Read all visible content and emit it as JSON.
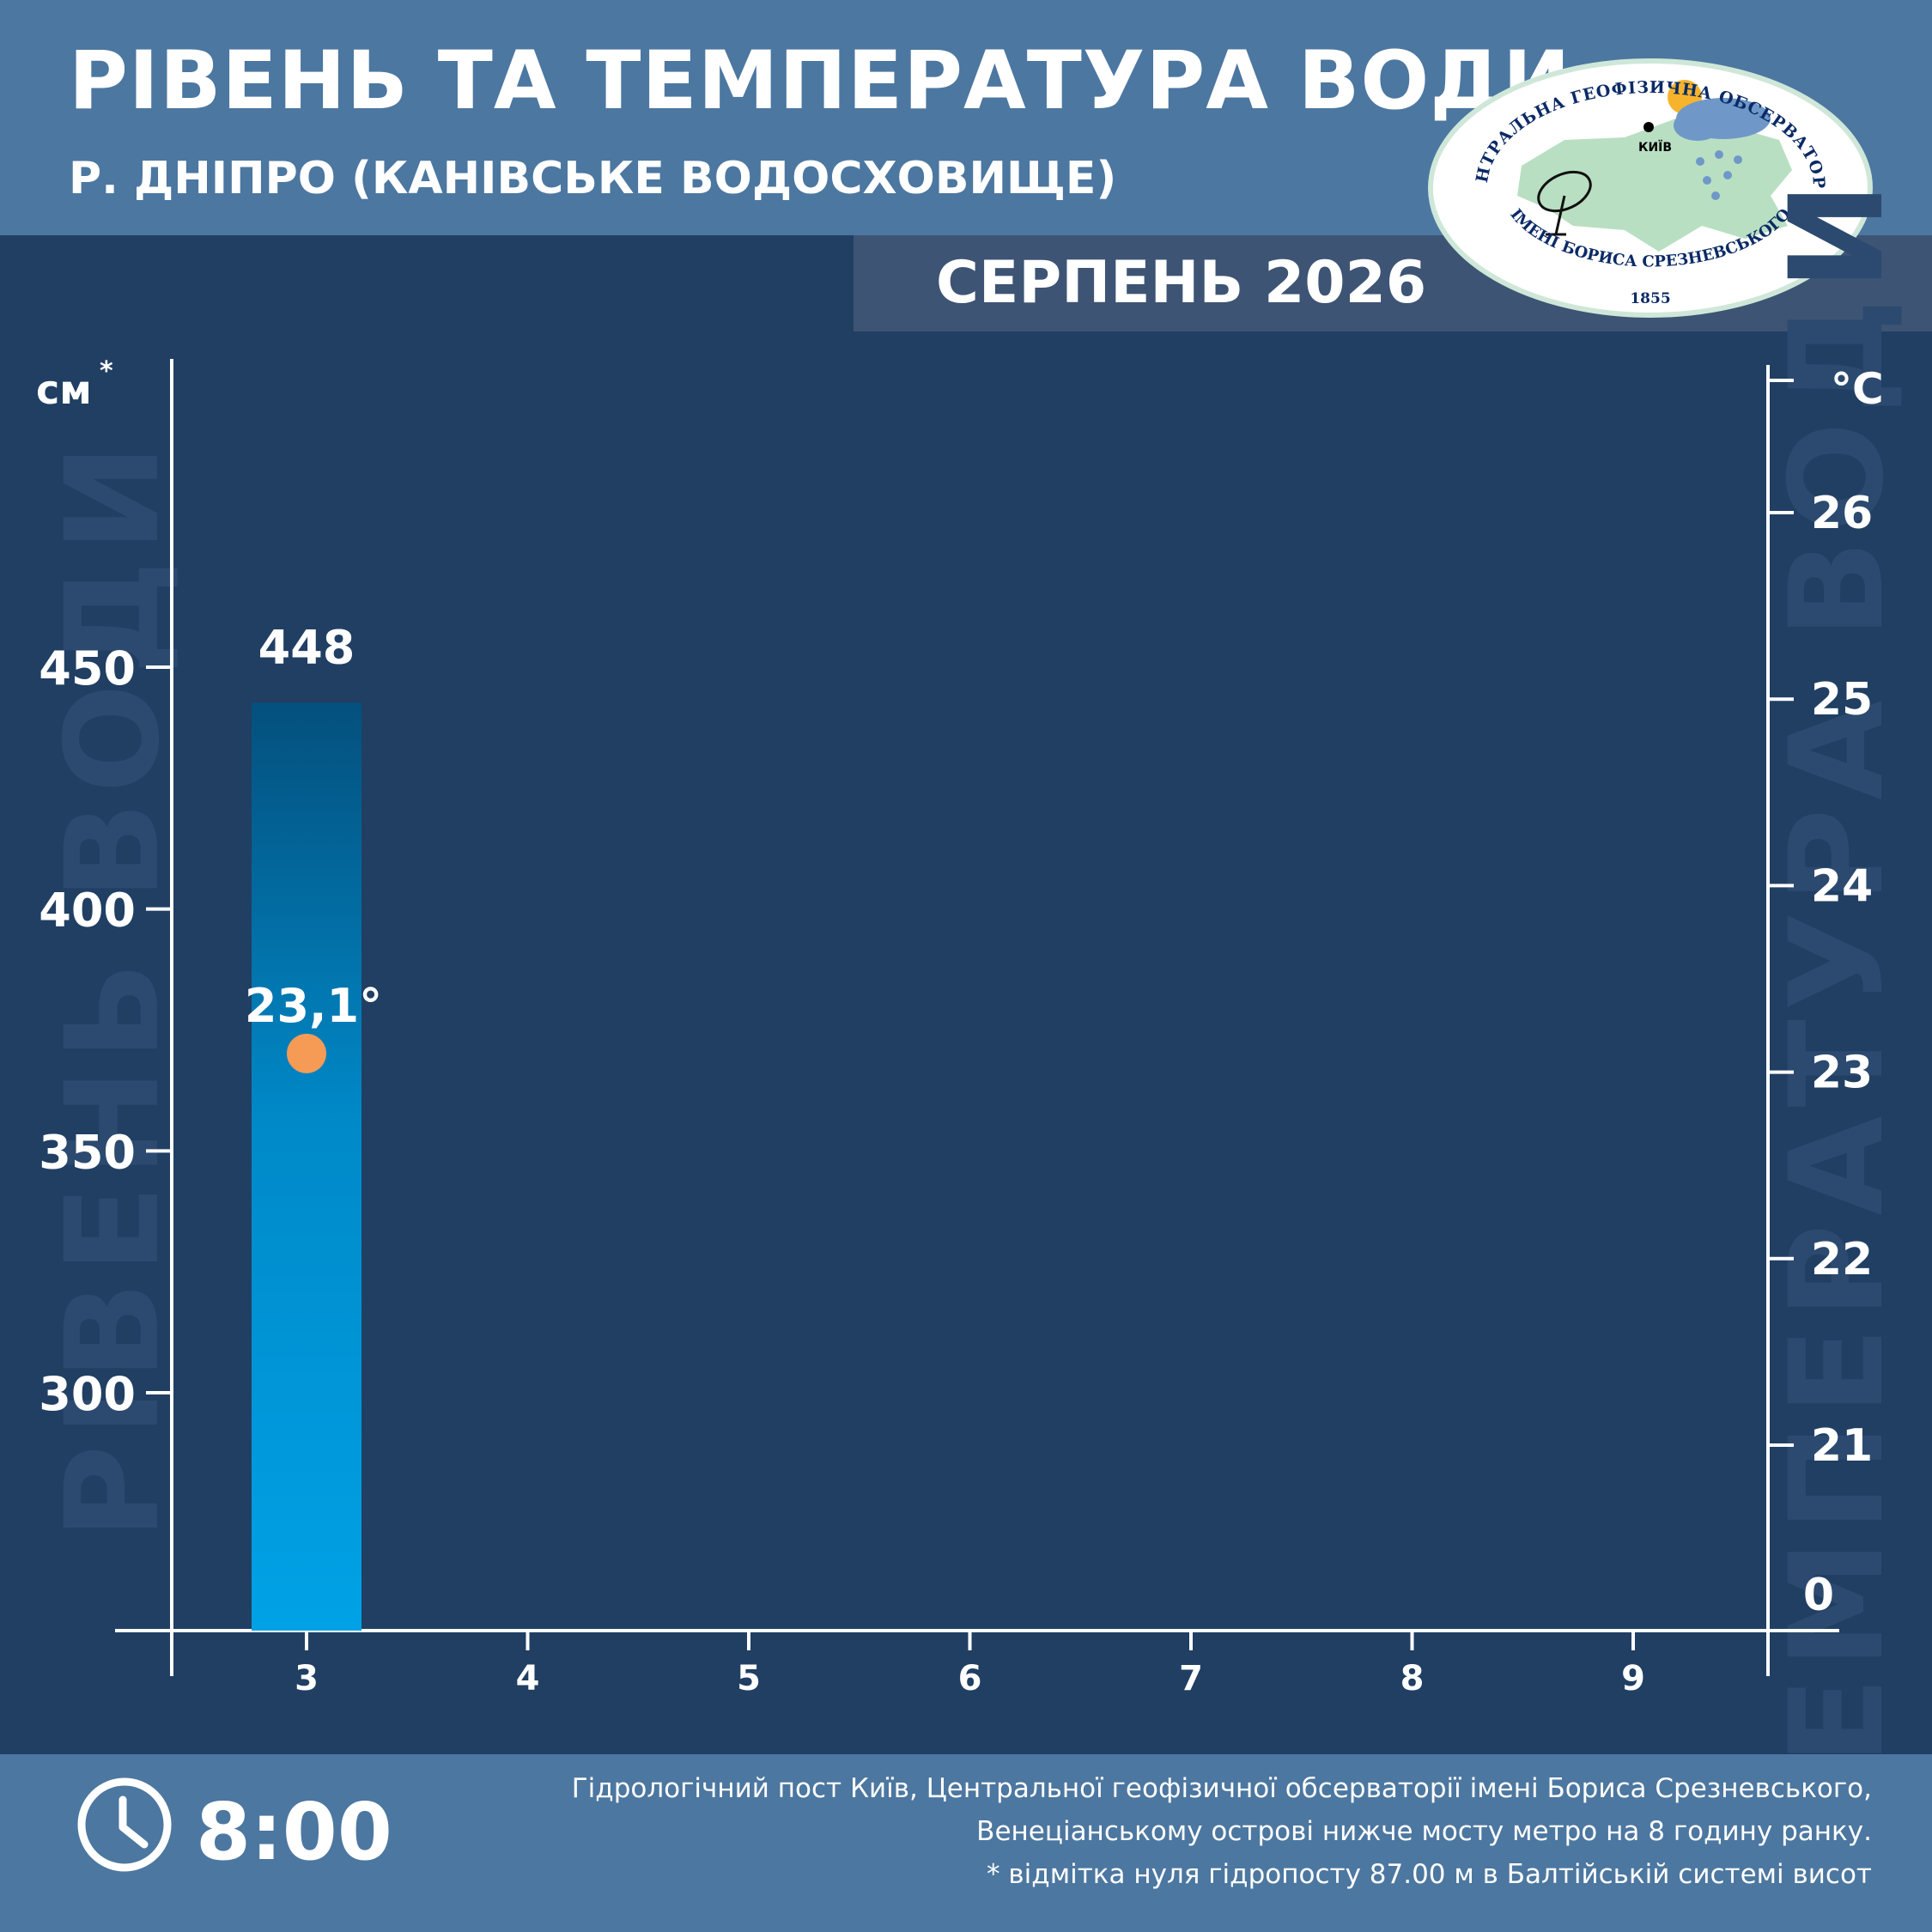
{
  "header": {
    "title": "РІВЕНЬ ТА ТЕМПЕРАТУРА ВОДИ",
    "subtitle": "Р. ДНІПРО (КАНІВСЬКЕ ВОДОСХОВИЩЕ)",
    "month": "СЕРПЕНЬ 2026"
  },
  "logo": {
    "top_text": "ЦЕНТРАЛЬНА ГЕОФІЗИЧНА ОБСЕРВАТОРІЯ",
    "bottom_text": "ІМЕНІ БОРИСА СРЕЗНЕВСЬКОГО",
    "year": "1855",
    "city": "КИЇВ"
  },
  "watermarks": {
    "left": "РІВЕНЬ ВОДИ",
    "right": "ТЕМПЕРАТУРА ВОДИ"
  },
  "chart_data": {
    "type": "bar",
    "x": [
      3,
      4,
      5,
      6,
      7,
      8,
      9
    ],
    "series": [
      {
        "values": [
          448,
          null,
          null,
          null,
          null,
          null,
          null
        ],
        "labels": [
          "448"
        ]
      },
      {
        "values": [
          23.1,
          null,
          null,
          null,
          null,
          null,
          null
        ],
        "labels": [
          "23,1°"
        ]
      }
    ],
    "left_axis": {
      "unit": "см",
      "unit_mark": "*",
      "ticks": [
        300,
        350,
        400,
        450
      ]
    },
    "right_axis": {
      "unit": "°C",
      "ticks": [
        "21",
        "22",
        "23",
        "24",
        "25",
        "26"
      ],
      "baseline_label": "0"
    }
  },
  "footer": {
    "time": "8:00",
    "note_lines": [
      "Гідрологічний пост Київ, Центральної геофізичної обсерваторії імені Бориса Срезневського,",
      "Венеціанському острові нижче мосту метро  на 8 годину ранку.",
      "* відмітка нуля гідропосту 87.00 м в Балтійській системі висот"
    ]
  },
  "colors": {
    "background": "#203f63",
    "header": "#4c77a0",
    "bar_top": "#04507d",
    "bar_bottom": "#00a2e6",
    "temperature_dot": "#f59b55"
  }
}
